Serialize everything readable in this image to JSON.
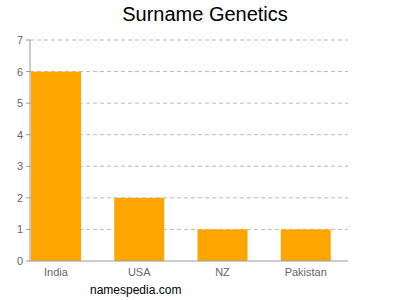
{
  "chart_data": {
    "type": "bar",
    "title": "Surname Genetics",
    "categories": [
      "India",
      "USA",
      "NZ",
      "Pakistan"
    ],
    "values": [
      6,
      2,
      1,
      1
    ],
    "color": "#ffa500",
    "ylim": [
      0,
      7
    ],
    "yticks": [
      0,
      1,
      2,
      3,
      4,
      5,
      6,
      7
    ],
    "grid": true,
    "annotations": [
      "namespedia.com"
    ]
  }
}
